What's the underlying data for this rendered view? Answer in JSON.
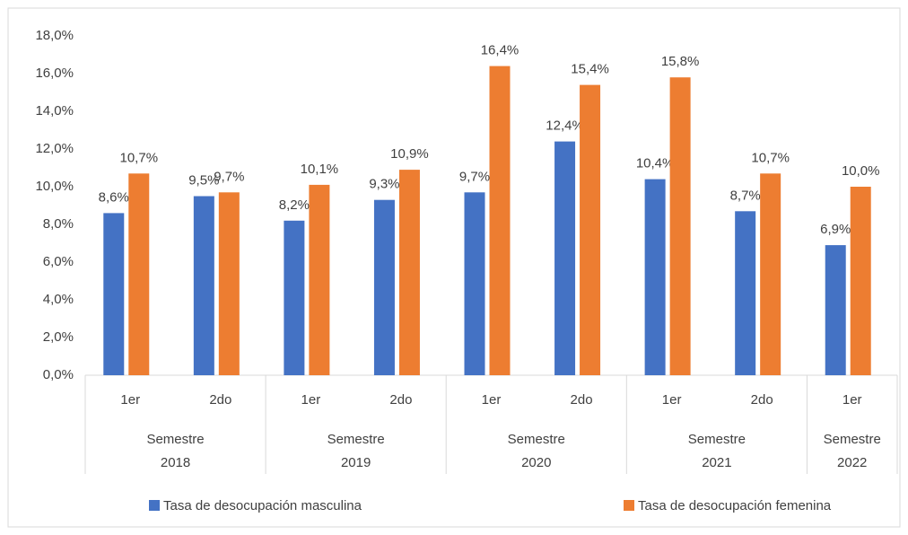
{
  "chart_data": {
    "type": "bar",
    "groups": [
      {
        "lines": [
          "Semestre",
          "2018"
        ],
        "categories": [
          "1er",
          "2do"
        ]
      },
      {
        "lines": [
          "Semestre",
          "2019"
        ],
        "categories": [
          "1er",
          "2do"
        ]
      },
      {
        "lines": [
          "Semestre",
          "2020"
        ],
        "categories": [
          "1er",
          "2do"
        ]
      },
      {
        "lines": [
          "Semestre",
          "2021"
        ],
        "categories": [
          "1er",
          "2do"
        ]
      },
      {
        "lines": [
          "Semestre",
          "2022"
        ],
        "categories": [
          "1er"
        ]
      }
    ],
    "series": [
      {
        "name": "Tasa de desocupación masculina",
        "color": "#4472c4",
        "values": [
          8.6,
          9.5,
          8.2,
          9.3,
          9.7,
          12.4,
          10.4,
          8.7,
          6.9
        ],
        "value_labels": [
          "8,6%",
          "9,5%",
          "8,2%",
          "9,3%",
          "9,7%",
          "12,4%",
          "10,4%",
          "8,7%",
          "6,9%"
        ]
      },
      {
        "name": "Tasa de desocupación femenina",
        "color": "#ed7d31",
        "values": [
          10.7,
          9.7,
          10.1,
          10.9,
          16.4,
          15.4,
          15.8,
          10.7,
          10.0
        ],
        "value_labels": [
          "10,7%",
          "9,7%",
          "10,1%",
          "10,9%",
          "16,4%",
          "15,4%",
          "15,8%",
          "10,7%",
          "10,0%"
        ]
      }
    ],
    "ylim": [
      0,
      18
    ],
    "yticks": [
      {
        "value": 0,
        "label": "0,0%"
      },
      {
        "value": 2,
        "label": "2,0%"
      },
      {
        "value": 4,
        "label": "4,0%"
      },
      {
        "value": 6,
        "label": "6,0%"
      },
      {
        "value": 8,
        "label": "8,0%"
      },
      {
        "value": 10,
        "label": "10,0%"
      },
      {
        "value": 12,
        "label": "12,0%"
      },
      {
        "value": 14,
        "label": "14,0%"
      },
      {
        "value": 16,
        "label": "16,0%"
      },
      {
        "value": 18,
        "label": "18,0%"
      }
    ],
    "grid": false,
    "legend": "bottom"
  }
}
